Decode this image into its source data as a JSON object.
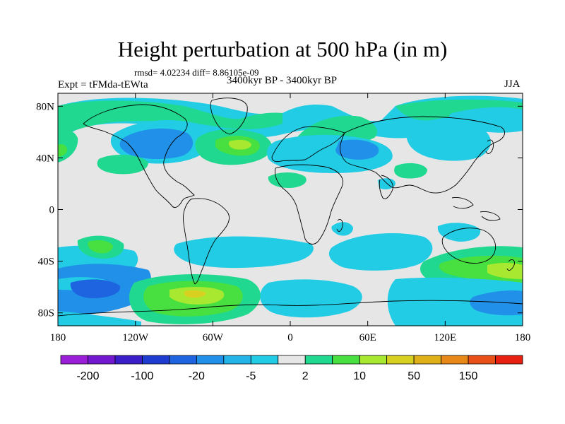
{
  "title": "Height perturbation at 500 hPa (in m)",
  "stats": "rmsd= 4.02234 diff= 8.86105e-09",
  "experiment": "Expt = tFMda-tEWta",
  "period": "3400kyr BP - 3400kyr BP",
  "season": "JJA",
  "map": {
    "lon_ticks": [
      "180",
      "120W",
      "60W",
      "0",
      "60E",
      "120E",
      "180"
    ],
    "lat_ticks": [
      "80N",
      "40N",
      "0",
      "40S",
      "80S"
    ],
    "lat_tick_values": [
      80,
      40,
      0,
      -40,
      -80
    ],
    "background_color": "#e6e6e6"
  },
  "colorbar": {
    "colors": [
      "#9a1ed8",
      "#7418d0",
      "#3c1ec8",
      "#1e3cd0",
      "#1e64e0",
      "#2090e8",
      "#24b4e8",
      "#22cce4",
      "#e6e6e6",
      "#20d890",
      "#48e040",
      "#a8e830",
      "#d8d020",
      "#e0b018",
      "#e88818",
      "#e85018",
      "#e82010"
    ],
    "labels": [
      "-200",
      "-100",
      "-20",
      "-5",
      "2",
      "10",
      "50",
      "150"
    ]
  }
}
